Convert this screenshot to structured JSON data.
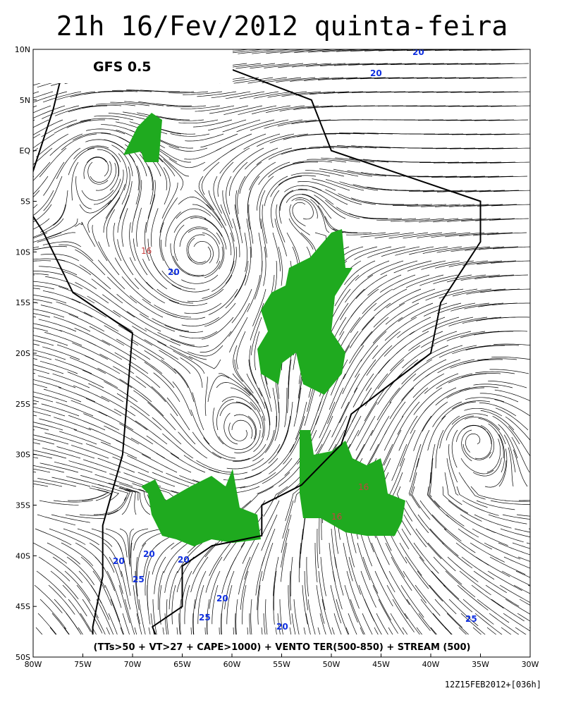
{
  "header": {
    "title": "21h 16/Fev/2012 quinta-feira",
    "model": "GFS 0.5"
  },
  "axes": {
    "lat_labels": [
      "10N",
      "5N",
      "EQ",
      "5S",
      "10S",
      "15S",
      "20S",
      "25S",
      "30S",
      "35S",
      "40S",
      "45S",
      "50S"
    ],
    "lon_labels": [
      "80W",
      "75W",
      "70W",
      "65W",
      "60W",
      "55W",
      "50W",
      "45W",
      "40W",
      "35W",
      "30W"
    ]
  },
  "contours": {
    "blue_labels": [
      "20",
      "20",
      "20",
      "20",
      "20",
      "25",
      "20",
      "25",
      "20",
      "25",
      "20"
    ],
    "red_labels": [
      "16",
      "16",
      "16"
    ]
  },
  "legend": "(TTs>50 + VT>27 + CAPE>1000) + VENTO TER(500-850) + STREAM (500)",
  "footer": "12Z15FEB2012+[036h]"
}
